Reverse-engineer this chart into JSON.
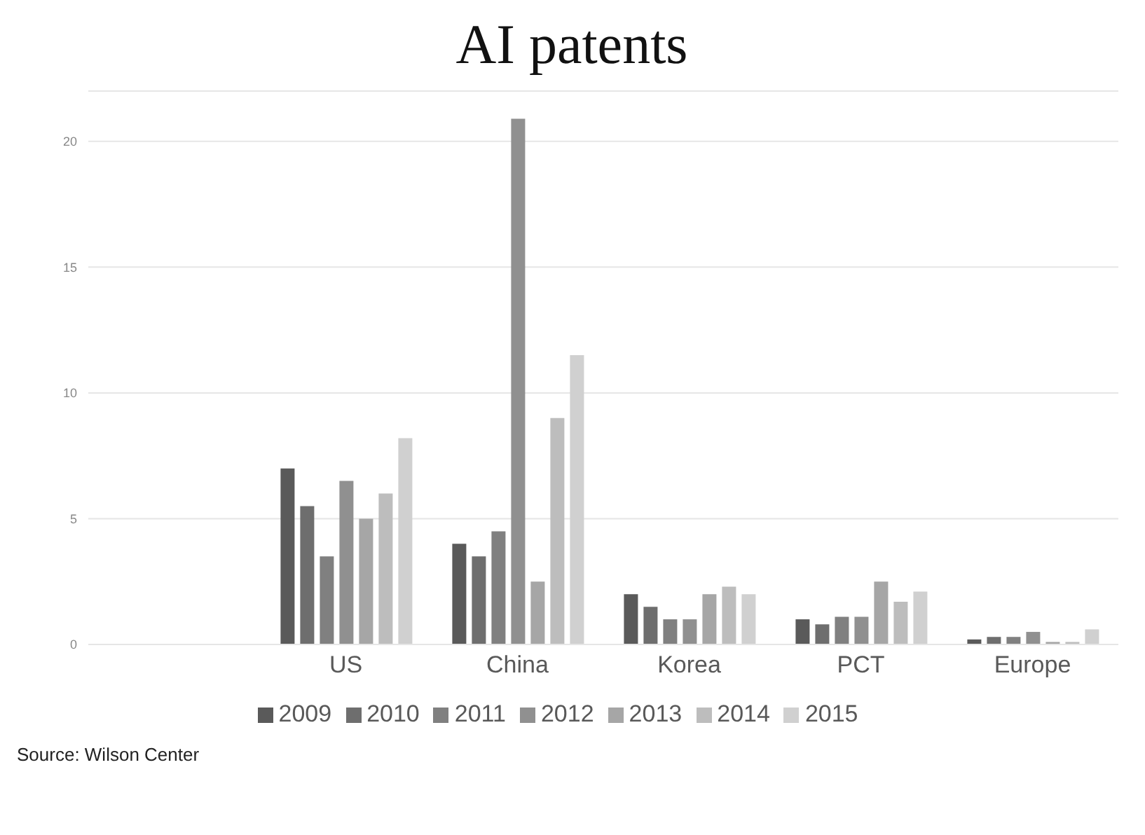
{
  "chart_data": {
    "type": "bar",
    "title": "AI patents",
    "categories": [
      null,
      "US",
      "China",
      "Korea",
      "PCT",
      "Europe"
    ],
    "series": [
      {
        "name": "2009",
        "color": "#5a5a5a",
        "values": [
          null,
          7.0,
          4.0,
          2.0,
          1.0,
          0.2
        ]
      },
      {
        "name": "2010",
        "color": "#6e6e6e",
        "values": [
          null,
          5.5,
          3.5,
          1.5,
          0.8,
          0.3
        ]
      },
      {
        "name": "2011",
        "color": "#808080",
        "values": [
          null,
          3.5,
          4.5,
          1.0,
          1.1,
          0.3
        ]
      },
      {
        "name": "2012",
        "color": "#909090",
        "values": [
          null,
          6.5,
          20.9,
          1.0,
          1.1,
          0.5
        ]
      },
      {
        "name": "2013",
        "color": "#a6a6a6",
        "values": [
          null,
          5.0,
          2.5,
          2.0,
          2.5,
          0.1
        ]
      },
      {
        "name": "2014",
        "color": "#bdbdbd",
        "values": [
          null,
          6.0,
          9.0,
          2.3,
          1.7,
          0.1
        ]
      },
      {
        "name": "2015",
        "color": "#d0d0d0",
        "values": [
          null,
          8.2,
          11.5,
          2.0,
          2.1,
          0.6
        ]
      }
    ],
    "ylim": [
      0,
      22
    ],
    "yticks": [
      0,
      5,
      10,
      15,
      20
    ],
    "grid": "y",
    "legend": "bottom",
    "annotations": [
      "Source: Wilson Center"
    ]
  }
}
